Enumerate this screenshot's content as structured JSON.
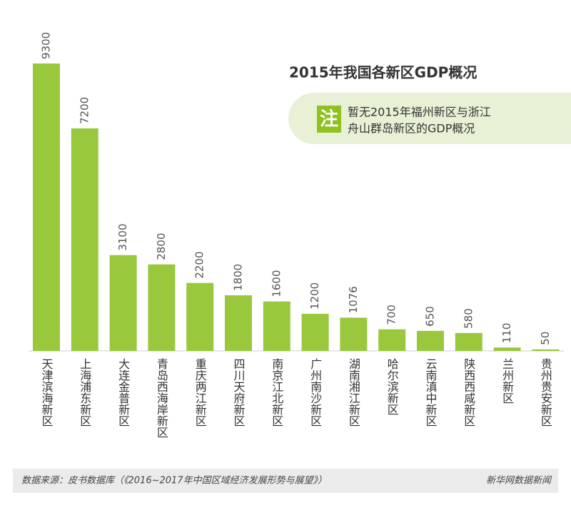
{
  "chart_data": {
    "type": "bar",
    "title": "2015年我国各新区GDP概况",
    "note": {
      "badge": "注",
      "lines": [
        "暂无2015年福州新区与浙江",
        "舟山群岛新区的GDP概况"
      ]
    },
    "categories": [
      "天津滨海新区",
      "上海浦东新区",
      "大连金普新区",
      "青岛西海岸新区",
      "重庆两江新区",
      "四川天府新区",
      "南京江北新区",
      "广州南沙新区",
      "湖南湘江新区",
      "哈尔滨新区",
      "云南滇中新区",
      "陕西西咸新区",
      "兰州新区",
      "贵州贵安新区"
    ],
    "values": [
      9300,
      7200,
      3100,
      2800,
      2200,
      1800,
      1600,
      1200,
      1076,
      700,
      650,
      580,
      110,
      50
    ],
    "color": "#9ac83c",
    "ylim": [
      0,
      9300
    ],
    "source": "数据来源：皮书数据库（《2016~2017年中国区域经济发展形势与展望》）",
    "credit": "新华网数据新闻"
  }
}
